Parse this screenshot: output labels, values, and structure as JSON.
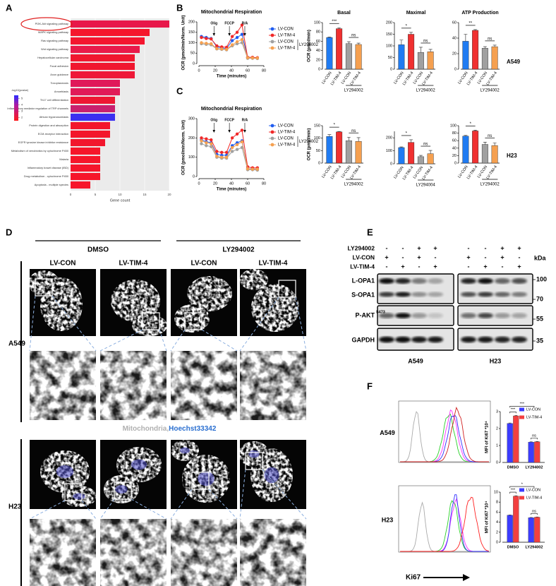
{
  "figure": {
    "panel_letters": [
      "A",
      "B",
      "C",
      "D",
      "E",
      "F"
    ]
  },
  "chart_data": [
    {
      "type": "barh",
      "categories": [
        "PI3K-Akt signaling pathway",
        "MAPK signaling pathway",
        "Ras signaling pathway",
        "Wnt signaling pathway",
        "Hepatocellular carcinoma",
        "Focal adhesion",
        "Axon guidance",
        "Toxoplasmosis",
        "Amoebiasis",
        "Th17 cell differentiation",
        "Inflammatory mediator regulation of TRP channels",
        "African trypanosomiasis",
        "Protein digestion and absorption",
        "ECM-receptor interaction",
        "EGFR tyrosine kinase inhibitor resistance",
        "Metabolism of xenobiotics by cytochrome P450",
        "Malaria",
        "Inflammatory bowel disease (IBD)",
        "Drug metabolism - cytochrome P450",
        "Apoptosis - multiple species"
      ],
      "values": [
        20,
        16,
        15,
        14,
        13,
        13,
        13,
        10,
        10,
        9,
        9,
        9,
        8,
        8,
        7,
        6,
        6,
        6,
        6,
        4
      ],
      "colors": [
        "#e8174a",
        "#f5162c",
        "#f4162f",
        "#e91a4a",
        "#f0172f",
        "#f0172f",
        "#ee1838",
        "#e0195a",
        "#e11a58",
        "#ee1733",
        "#c9206e",
        "#3b2ff0",
        "#f3162b",
        "#f3162b",
        "#f2162d",
        "#f6162a",
        "#f6162a",
        "#f5162b",
        "#f6162a",
        "#f6162a"
      ],
      "xlim": [
        0,
        20
      ],
      "xticks": [
        0,
        5,
        10,
        15,
        20
      ],
      "xlabel": "Gene count",
      "colorbar": {
        "title": "-log10(pvalue)",
        "clim": [
          1.5,
          5.5
        ],
        "ticks": [
          5,
          4,
          3,
          2
        ]
      }
    },
    {
      "type": "line",
      "title": "Mitochondrial Respiration",
      "x": [
        3,
        9,
        15,
        22,
        28,
        34,
        41,
        47,
        53,
        60,
        66,
        72
      ],
      "series": [
        {
          "name": "LV-CON",
          "color": "#1f5cf0",
          "values": [
            130,
            125,
            120,
            80,
            75,
            72,
            110,
            125,
            140,
            30,
            28,
            27
          ]
        },
        {
          "name": "LV-TIM-4",
          "color": "#f02828",
          "values": [
            125,
            120,
            118,
            85,
            80,
            78,
            130,
            150,
            185,
            30,
            30,
            28
          ]
        },
        {
          "name": "LV-CON",
          "color": "#a0a0a0",
          "values": [
            95,
            92,
            90,
            70,
            68,
            66,
            85,
            95,
            100,
            25,
            25,
            24
          ]
        },
        {
          "name": "LV-TIM-4",
          "color": "#f5a050",
          "values": [
            100,
            97,
            95,
            72,
            70,
            68,
            90,
            105,
            115,
            28,
            27,
            26
          ]
        }
      ],
      "xlim": [
        0,
        80
      ],
      "xticks": [
        0,
        20,
        40,
        60,
        80
      ],
      "ylim": [
        0,
        200
      ],
      "yticks": [
        0,
        50,
        100,
        150,
        200
      ],
      "xlabel": "Time (minutes)",
      "ylabel": "OCR (pmol/min/Norm. Unit)",
      "annotations": [
        "Olig",
        "FCCP",
        "R/A"
      ],
      "legend_group_label": "LY294002"
    },
    {
      "type": "bar",
      "title": "Basal",
      "categories": [
        "LV-CON",
        "LV-TIM-4",
        "LV-CON",
        "LV-TIM-4"
      ],
      "values": [
        68,
        87,
        55,
        53
      ],
      "errors": [
        1,
        2,
        4,
        3
      ],
      "colors": [
        "#1f7bf2",
        "#f03030",
        "#a0a0a0",
        "#f5a050"
      ],
      "ylim": [
        0,
        100
      ],
      "yticks": [
        0,
        20,
        40,
        60,
        80,
        100
      ],
      "ylabel": "OCR (pmol/min)",
      "group_label": "LY294002",
      "significance": [
        "***",
        "ns"
      ]
    },
    {
      "type": "bar",
      "title": "Maximal",
      "categories": [
        "LV-CON",
        "LV-TIM-4",
        "LV-CON",
        "LV-TIM-4"
      ],
      "values": [
        105,
        150,
        72,
        75
      ],
      "errors": [
        20,
        8,
        22,
        10
      ],
      "colors": [
        "#1f7bf2",
        "#f03030",
        "#a0a0a0",
        "#f5a050"
      ],
      "ylim": [
        0,
        200
      ],
      "yticks": [
        0,
        50,
        100,
        150,
        200
      ],
      "group_label": "LY294002",
      "significance": [
        "*",
        "ns"
      ]
    },
    {
      "type": "bar",
      "title": "ATP Production",
      "categories": [
        "LV-CON",
        "LV-TIM-4",
        "LV-CON",
        "LV-TIM-4"
      ],
      "values": [
        36,
        50,
        27,
        29
      ],
      "errors": [
        9,
        1,
        2,
        2
      ],
      "colors": [
        "#1f7bf2",
        "#f03030",
        "#a0a0a0",
        "#f5a050"
      ],
      "ylim": [
        0,
        60
      ],
      "yticks": [
        0,
        20,
        40,
        60
      ],
      "group_label": "LY294002",
      "significance": [
        "**",
        "ns"
      ],
      "side_label": "A549"
    },
    {
      "type": "line",
      "title": "Mitochondrial Respiration",
      "x": [
        3,
        9,
        15,
        22,
        28,
        34,
        41,
        47,
        53,
        60,
        66,
        72
      ],
      "series": [
        {
          "name": "LV-CON",
          "color": "#1f5cf0",
          "values": [
            190,
            180,
            175,
            115,
            110,
            110,
            160,
            175,
            185,
            40,
            40,
            38
          ]
        },
        {
          "name": "LV-TIM-4",
          "color": "#f02828",
          "values": [
            200,
            195,
            190,
            130,
            125,
            125,
            200,
            220,
            240,
            50,
            45,
            45
          ]
        },
        {
          "name": "LV-CON",
          "color": "#a0a0a0",
          "values": [
            170,
            160,
            155,
            100,
            95,
            95,
            130,
            140,
            150,
            35,
            35,
            33
          ]
        },
        {
          "name": "LV-TIM-4",
          "color": "#f5a050",
          "values": [
            185,
            175,
            170,
            105,
            100,
            100,
            150,
            165,
            180,
            40,
            38,
            38
          ]
        }
      ],
      "xlim": [
        0,
        80
      ],
      "xticks": [
        0,
        20,
        40,
        60,
        80
      ],
      "ylim": [
        0,
        300
      ],
      "yticks": [
        0,
        100,
        200,
        300
      ],
      "xlabel": "Time (minutes)",
      "ylabel": "OCR (pmol/min/Norm. Unit)",
      "annotations": [
        "Olig",
        "FCCP",
        "R/A"
      ],
      "legend_group_label": "LY294002"
    },
    {
      "type": "bar",
      "categories": [
        "LV-CON",
        "LV-TIM-4",
        "LV-CON",
        "LV-TIM-4"
      ],
      "values": [
        107,
        125,
        90,
        87
      ],
      "errors": [
        7,
        2,
        14,
        15
      ],
      "colors": [
        "#1f7bf2",
        "#f03030",
        "#a0a0a0",
        "#f5a050"
      ],
      "ylim": [
        0,
        150
      ],
      "yticks": [
        0,
        50,
        100,
        150
      ],
      "ylabel": "OCR (pmol/min)",
      "group_label": "LY294002",
      "significance": [
        "*",
        "ns"
      ]
    },
    {
      "type": "bar",
      "categories": [
        "LV-CON",
        "LV-TIM-4",
        "LV-CON",
        "LV-TIM-4"
      ],
      "values": [
        125,
        165,
        55,
        78
      ],
      "errors": [
        5,
        20,
        10,
        25
      ],
      "colors": [
        "#1f7bf2",
        "#f03030",
        "#a0a0a0",
        "#f5a050"
      ],
      "ylim": [
        0,
        250
      ],
      "yticks": [
        0,
        100,
        200
      ],
      "group_label": "LY294004",
      "significance": [
        "*",
        "ns"
      ]
    },
    {
      "type": "bar",
      "categories": [
        "LV-CON",
        "LV-TIM-4",
        "LV-CON",
        "LV-TIM-4"
      ],
      "values": [
        72,
        86,
        50,
        47
      ],
      "errors": [
        2,
        2,
        6,
        7
      ],
      "colors": [
        "#1f7bf2",
        "#f03030",
        "#a0a0a0",
        "#f5a050"
      ],
      "ylim": [
        0,
        100
      ],
      "yticks": [
        0,
        20,
        40,
        60,
        80,
        100
      ],
      "group_label": "LY294002",
      "significance": [
        "*",
        "ns"
      ],
      "side_label": "H23"
    },
    {
      "type": "grouped_bar",
      "categories": [
        "DMSO",
        "LY294002"
      ],
      "series": [
        {
          "name": "LV-CON",
          "color": "#3c3cff",
          "values": [
            2.3,
            1.2
          ],
          "errors": [
            0.03,
            0.02
          ]
        },
        {
          "name": "LV-TIM-4",
          "color": "#f24040",
          "values": [
            2.75,
            1.22
          ],
          "errors": [
            0.03,
            0.02
          ]
        }
      ],
      "ylim": [
        0,
        3
      ],
      "yticks": [
        0,
        1,
        2,
        3
      ],
      "ylabel": "MFI of Ki67 *10⁴",
      "significance": [
        "***",
        "***",
        "ns"
      ]
    },
    {
      "type": "grouped_bar",
      "categories": [
        "DMSO",
        "LY294002"
      ],
      "series": [
        {
          "name": "LV-CON",
          "color": "#3c3cff",
          "values": [
            5.4,
            4.9
          ],
          "errors": [
            0.05,
            0.05
          ]
        },
        {
          "name": "LV-TIM-4",
          "color": "#f24040",
          "values": [
            9.2,
            5.0
          ],
          "errors": [
            0.08,
            0.05
          ]
        }
      ],
      "ylim": [
        0,
        10
      ],
      "yticks": [
        0,
        2,
        4,
        6,
        8,
        10
      ],
      "ylabel": "MFI of Ki67 *10⁴",
      "significance": [
        "***",
        "*",
        "ns"
      ]
    }
  ],
  "microscopy": {
    "treatments": [
      "DMSO",
      "LY294002"
    ],
    "columns": [
      "LV-CON",
      "LV-TIM-4",
      "LV-CON",
      "LV-TIM-4"
    ],
    "rows": [
      "A549",
      "H23"
    ],
    "stain_labels": [
      "Mitochondria,",
      "Hoechst33342"
    ]
  },
  "western_blot": {
    "conditions": [
      {
        "label": "LY294002",
        "signs": [
          "-",
          "-",
          "+",
          "+",
          "-",
          "-",
          "+",
          "+"
        ]
      },
      {
        "label": "LV-CON",
        "signs": [
          "+",
          "-",
          "+",
          "-",
          "+",
          "-",
          "+",
          "-"
        ]
      },
      {
        "label": "LV-TIM-4",
        "signs": [
          "-",
          "+",
          "-",
          "+",
          "-",
          "+",
          "-",
          "+"
        ]
      }
    ],
    "unit": "kDa",
    "bands": [
      "L-OPA1",
      "S-OPA1",
      "P-AKT",
      "GAPDH"
    ],
    "p_akt_site": "S473",
    "markers": [
      100,
      70,
      55,
      35
    ],
    "cell_lines": [
      "A549",
      "H23"
    ]
  },
  "flow": {
    "rows": [
      "A549",
      "H23"
    ],
    "axis_label": "Ki67"
  }
}
